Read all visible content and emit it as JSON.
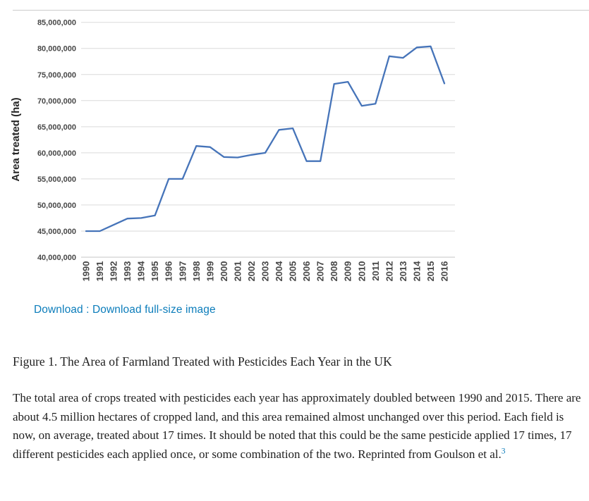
{
  "figure": {
    "caption_title": "Figure 1. The Area of Farmland Treated with Pesticides Each Year in the UK",
    "description": "The total area of crops treated with pesticides each year has approximately doubled between 1990 and 2015. There are about 4.5 million hectares of cropped land, and this area remained almost unchanged over this period. Each field is now, on average, treated about 17 times. It should be noted that this could be the same pesticide applied 17 times, 17 different pesticides each applied once, or some combination of the two. Reprinted from Goulson et al.",
    "reference_superscript": "3"
  },
  "download": {
    "label": "Download",
    "separator": " : ",
    "full_size_label": "Download full-size image",
    "link_color": "#0c7dbb"
  },
  "colors": {
    "line": "#4674b9",
    "gridline": "#dadada",
    "axis": "#c6c6c6",
    "tick_text": "#474747",
    "divider": "#cccccc"
  },
  "chart_data": {
    "type": "line",
    "title": "",
    "xlabel": "",
    "ylabel": "Area treated (ha)",
    "ylim": [
      40000000,
      85000000
    ],
    "ytick_step": 5000000,
    "grid": true,
    "legend": "none",
    "line_color": "#4674b9",
    "x": [
      1990,
      1991,
      1992,
      1993,
      1994,
      1995,
      1996,
      1997,
      1998,
      1999,
      2000,
      2001,
      2002,
      2003,
      2004,
      2005,
      2006,
      2007,
      2008,
      2009,
      2010,
      2011,
      2012,
      2013,
      2014,
      2015,
      2016
    ],
    "series": [
      {
        "name": "Area treated (ha)",
        "values": [
          45000000,
          45000000,
          46200000,
          47400000,
          47500000,
          48000000,
          55000000,
          55000000,
          61300000,
          61100000,
          59200000,
          59100000,
          59600000,
          60000000,
          64400000,
          64700000,
          58400000,
          58400000,
          73200000,
          73600000,
          69000000,
          69400000,
          78500000,
          78200000,
          80200000,
          80400000,
          73300000
        ]
      }
    ]
  }
}
